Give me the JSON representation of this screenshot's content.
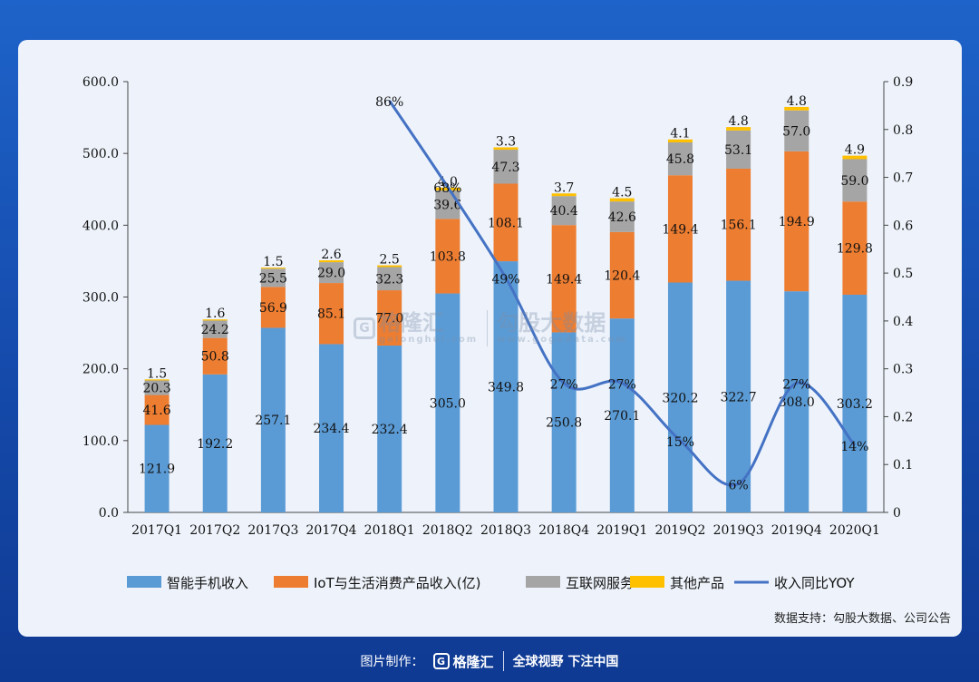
{
  "chart_data": {
    "type": "bar",
    "stacked": true,
    "categories": [
      "2017Q1",
      "2017Q2",
      "2017Q3",
      "2017Q4",
      "2018Q1",
      "2018Q2",
      "2018Q3",
      "2018Q4",
      "2019Q1",
      "2019Q2",
      "2019Q3",
      "2019Q4",
      "2020Q1"
    ],
    "series": [
      {
        "name": "智能手机收入",
        "color": "#5b9bd5",
        "values": [
          121.9,
          192.2,
          257.1,
          234.4,
          232.4,
          305.0,
          349.8,
          250.8,
          270.1,
          320.2,
          322.7,
          308.0,
          303.2
        ]
      },
      {
        "name": "IoT与生活消费产品收入(亿)",
        "color": "#ed7d31",
        "values": [
          41.6,
          50.8,
          56.9,
          85.1,
          77.0,
          103.8,
          108.1,
          149.4,
          120.4,
          149.4,
          156.1,
          194.9,
          129.8
        ]
      },
      {
        "name": "互联网服务",
        "color": "#a5a5a5",
        "values": [
          20.3,
          24.2,
          25.5,
          29.0,
          32.3,
          39.6,
          47.3,
          40.4,
          42.6,
          45.8,
          53.1,
          57.0,
          59.0
        ]
      },
      {
        "name": "其他产品",
        "color": "#ffc000",
        "values": [
          1.5,
          1.6,
          1.5,
          2.6,
          2.5,
          4.0,
          3.3,
          3.7,
          4.5,
          4.1,
          4.8,
          4.8,
          4.9
        ]
      }
    ],
    "line_series": {
      "name": "收入同比YOY",
      "color": "#4472c4",
      "x": [
        "2018Q1",
        "2018Q2",
        "2018Q3",
        "2018Q4",
        "2019Q1",
        "2019Q2",
        "2019Q3",
        "2019Q4",
        "2020Q1"
      ],
      "values": [
        0.86,
        0.68,
        0.49,
        0.27,
        0.27,
        0.15,
        0.06,
        0.27,
        0.14
      ],
      "labels": [
        "86%",
        "68%",
        "49%",
        "27%",
        "27%",
        "15%",
        "6%",
        "27%",
        "14%"
      ]
    },
    "ylim": [
      0,
      600
    ],
    "y_ticks": [
      "0.0",
      "100.0",
      "200.0",
      "300.0",
      "400.0",
      "500.0",
      "600.0"
    ],
    "y2lim": [
      0,
      0.9
    ],
    "y2_ticks": [
      "0",
      "0.1",
      "0.2",
      "0.3",
      "0.4",
      "0.5",
      "0.6",
      "0.7",
      "0.8",
      "0.9"
    ],
    "legend_position": "bottom"
  },
  "source_text": "数据支持：勾股大数据、公司公告",
  "watermark": {
    "left": "格隆汇",
    "left_url": "gelonghui.com",
    "right": "勾股大数据",
    "right_url": "www.gogudata.com"
  },
  "footer": {
    "made_by": "图片制作：",
    "brand": "格隆汇",
    "brand_mark": "G",
    "slogan": "全球视野 下注中国"
  }
}
